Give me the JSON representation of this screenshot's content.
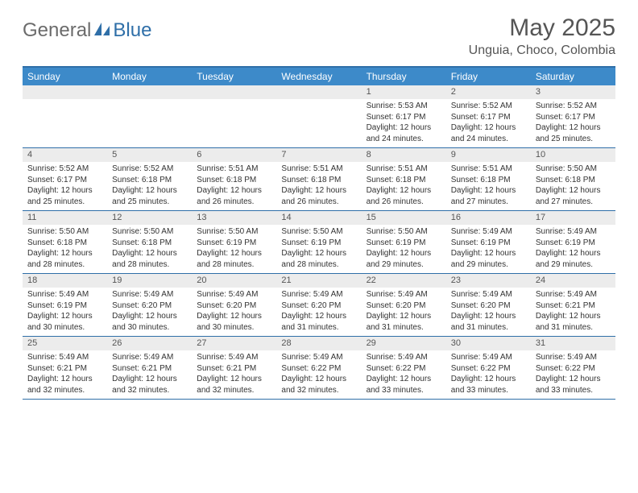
{
  "brand": {
    "part1": "General",
    "part2": "Blue"
  },
  "title": "May 2025",
  "location": "Unguia, Choco, Colombia",
  "colors": {
    "header_bg": "#3d8ac9",
    "border": "#2f6fa8",
    "daynum_bg": "#ececec",
    "text": "#333333",
    "title_text": "#555555"
  },
  "weekdays": [
    "Sunday",
    "Monday",
    "Tuesday",
    "Wednesday",
    "Thursday",
    "Friday",
    "Saturday"
  ],
  "weeks": [
    [
      {
        "n": "",
        "sr": "",
        "ss": "",
        "dl": ""
      },
      {
        "n": "",
        "sr": "",
        "ss": "",
        "dl": ""
      },
      {
        "n": "",
        "sr": "",
        "ss": "",
        "dl": ""
      },
      {
        "n": "",
        "sr": "",
        "ss": "",
        "dl": ""
      },
      {
        "n": "1",
        "sr": "Sunrise: 5:53 AM",
        "ss": "Sunset: 6:17 PM",
        "dl": "Daylight: 12 hours and 24 minutes."
      },
      {
        "n": "2",
        "sr": "Sunrise: 5:52 AM",
        "ss": "Sunset: 6:17 PM",
        "dl": "Daylight: 12 hours and 24 minutes."
      },
      {
        "n": "3",
        "sr": "Sunrise: 5:52 AM",
        "ss": "Sunset: 6:17 PM",
        "dl": "Daylight: 12 hours and 25 minutes."
      }
    ],
    [
      {
        "n": "4",
        "sr": "Sunrise: 5:52 AM",
        "ss": "Sunset: 6:17 PM",
        "dl": "Daylight: 12 hours and 25 minutes."
      },
      {
        "n": "5",
        "sr": "Sunrise: 5:52 AM",
        "ss": "Sunset: 6:18 PM",
        "dl": "Daylight: 12 hours and 25 minutes."
      },
      {
        "n": "6",
        "sr": "Sunrise: 5:51 AM",
        "ss": "Sunset: 6:18 PM",
        "dl": "Daylight: 12 hours and 26 minutes."
      },
      {
        "n": "7",
        "sr": "Sunrise: 5:51 AM",
        "ss": "Sunset: 6:18 PM",
        "dl": "Daylight: 12 hours and 26 minutes."
      },
      {
        "n": "8",
        "sr": "Sunrise: 5:51 AM",
        "ss": "Sunset: 6:18 PM",
        "dl": "Daylight: 12 hours and 26 minutes."
      },
      {
        "n": "9",
        "sr": "Sunrise: 5:51 AM",
        "ss": "Sunset: 6:18 PM",
        "dl": "Daylight: 12 hours and 27 minutes."
      },
      {
        "n": "10",
        "sr": "Sunrise: 5:50 AM",
        "ss": "Sunset: 6:18 PM",
        "dl": "Daylight: 12 hours and 27 minutes."
      }
    ],
    [
      {
        "n": "11",
        "sr": "Sunrise: 5:50 AM",
        "ss": "Sunset: 6:18 PM",
        "dl": "Daylight: 12 hours and 28 minutes."
      },
      {
        "n": "12",
        "sr": "Sunrise: 5:50 AM",
        "ss": "Sunset: 6:18 PM",
        "dl": "Daylight: 12 hours and 28 minutes."
      },
      {
        "n": "13",
        "sr": "Sunrise: 5:50 AM",
        "ss": "Sunset: 6:19 PM",
        "dl": "Daylight: 12 hours and 28 minutes."
      },
      {
        "n": "14",
        "sr": "Sunrise: 5:50 AM",
        "ss": "Sunset: 6:19 PM",
        "dl": "Daylight: 12 hours and 28 minutes."
      },
      {
        "n": "15",
        "sr": "Sunrise: 5:50 AM",
        "ss": "Sunset: 6:19 PM",
        "dl": "Daylight: 12 hours and 29 minutes."
      },
      {
        "n": "16",
        "sr": "Sunrise: 5:49 AM",
        "ss": "Sunset: 6:19 PM",
        "dl": "Daylight: 12 hours and 29 minutes."
      },
      {
        "n": "17",
        "sr": "Sunrise: 5:49 AM",
        "ss": "Sunset: 6:19 PM",
        "dl": "Daylight: 12 hours and 29 minutes."
      }
    ],
    [
      {
        "n": "18",
        "sr": "Sunrise: 5:49 AM",
        "ss": "Sunset: 6:19 PM",
        "dl": "Daylight: 12 hours and 30 minutes."
      },
      {
        "n": "19",
        "sr": "Sunrise: 5:49 AM",
        "ss": "Sunset: 6:20 PM",
        "dl": "Daylight: 12 hours and 30 minutes."
      },
      {
        "n": "20",
        "sr": "Sunrise: 5:49 AM",
        "ss": "Sunset: 6:20 PM",
        "dl": "Daylight: 12 hours and 30 minutes."
      },
      {
        "n": "21",
        "sr": "Sunrise: 5:49 AM",
        "ss": "Sunset: 6:20 PM",
        "dl": "Daylight: 12 hours and 31 minutes."
      },
      {
        "n": "22",
        "sr": "Sunrise: 5:49 AM",
        "ss": "Sunset: 6:20 PM",
        "dl": "Daylight: 12 hours and 31 minutes."
      },
      {
        "n": "23",
        "sr": "Sunrise: 5:49 AM",
        "ss": "Sunset: 6:20 PM",
        "dl": "Daylight: 12 hours and 31 minutes."
      },
      {
        "n": "24",
        "sr": "Sunrise: 5:49 AM",
        "ss": "Sunset: 6:21 PM",
        "dl": "Daylight: 12 hours and 31 minutes."
      }
    ],
    [
      {
        "n": "25",
        "sr": "Sunrise: 5:49 AM",
        "ss": "Sunset: 6:21 PM",
        "dl": "Daylight: 12 hours and 32 minutes."
      },
      {
        "n": "26",
        "sr": "Sunrise: 5:49 AM",
        "ss": "Sunset: 6:21 PM",
        "dl": "Daylight: 12 hours and 32 minutes."
      },
      {
        "n": "27",
        "sr": "Sunrise: 5:49 AM",
        "ss": "Sunset: 6:21 PM",
        "dl": "Daylight: 12 hours and 32 minutes."
      },
      {
        "n": "28",
        "sr": "Sunrise: 5:49 AM",
        "ss": "Sunset: 6:22 PM",
        "dl": "Daylight: 12 hours and 32 minutes."
      },
      {
        "n": "29",
        "sr": "Sunrise: 5:49 AM",
        "ss": "Sunset: 6:22 PM",
        "dl": "Daylight: 12 hours and 33 minutes."
      },
      {
        "n": "30",
        "sr": "Sunrise: 5:49 AM",
        "ss": "Sunset: 6:22 PM",
        "dl": "Daylight: 12 hours and 33 minutes."
      },
      {
        "n": "31",
        "sr": "Sunrise: 5:49 AM",
        "ss": "Sunset: 6:22 PM",
        "dl": "Daylight: 12 hours and 33 minutes."
      }
    ]
  ]
}
